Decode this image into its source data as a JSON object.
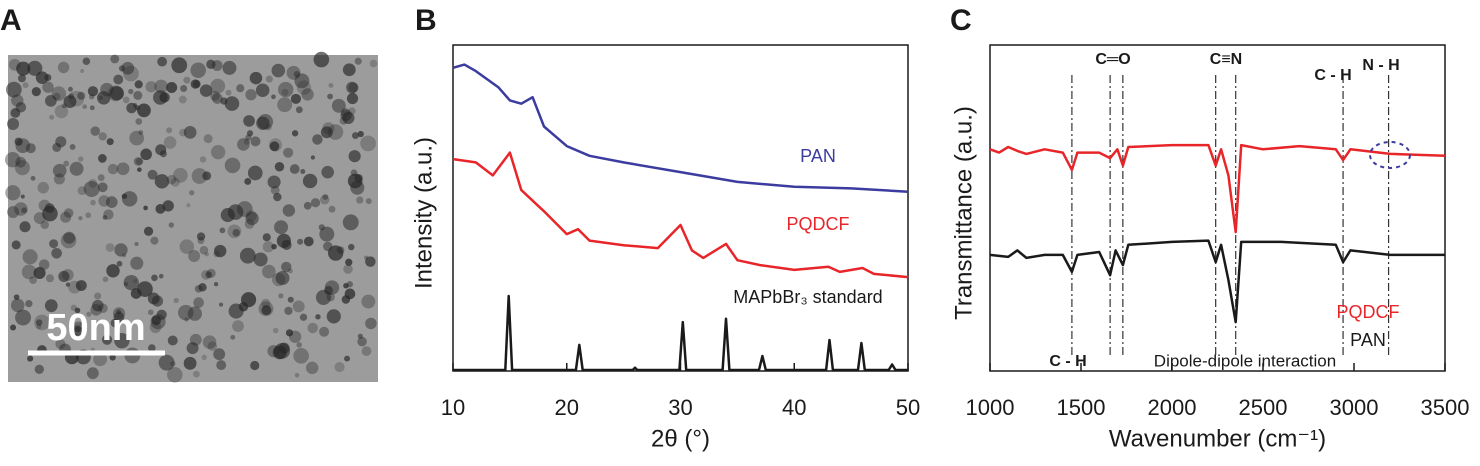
{
  "panel_a": {
    "label": "A",
    "scale_bar": "50nm"
  },
  "chart_data": [
    {
      "type": "line",
      "panel": "B",
      "xlabel": "2θ (°)",
      "ylabel": "Intensity (a.u.)",
      "xlim": [
        10,
        50
      ],
      "xticks": [
        10,
        20,
        30,
        40,
        50
      ],
      "ylim": [
        0,
        100
      ],
      "series": [
        {
          "name": "PAN",
          "color": "#3c3ca0",
          "x": [
            10,
            11,
            12,
            14,
            15,
            16,
            17,
            18,
            20,
            22,
            25,
            30,
            35,
            40,
            45,
            50
          ],
          "values": [
            93,
            94,
            92,
            87,
            83,
            82,
            84,
            75,
            69,
            66,
            64,
            61,
            58,
            56.5,
            56,
            55
          ]
        },
        {
          "name": "PQDCF",
          "color": "#e8262a",
          "x": [
            10,
            12,
            13.5,
            15,
            16,
            18,
            20,
            21,
            22,
            25,
            28,
            30,
            31,
            32,
            34,
            35,
            37,
            40,
            43,
            44,
            46,
            47,
            50
          ],
          "values": [
            65,
            64,
            60,
            67,
            55.5,
            49,
            42,
            43.5,
            40,
            38.6,
            37.7,
            44.8,
            37,
            34.7,
            39,
            34,
            32.5,
            31,
            32,
            30.4,
            31.6,
            29.8,
            28.8
          ]
        },
        {
          "name": "MAPbBr₃ standard",
          "color": "#1a1a1a",
          "x": [
            10,
            14.6,
            14.9,
            15.2,
            20.8,
            21.1,
            21.4,
            25.8,
            26,
            26.2,
            29.9,
            30.2,
            30.5,
            33.7,
            34,
            34.3,
            36.9,
            37.2,
            37.5,
            42.8,
            43.1,
            43.4,
            45.6,
            45.9,
            46.2,
            48.3,
            48.6,
            48.9,
            50
          ],
          "values": [
            0.3,
            0.3,
            23,
            0.3,
            0.3,
            8,
            0.3,
            0.3,
            1,
            0.3,
            0.3,
            15,
            0.3,
            0.3,
            16,
            0.3,
            0.3,
            4.6,
            0.3,
            0.3,
            9.5,
            0.3,
            0.3,
            8.6,
            0.3,
            0.3,
            2,
            0.3,
            0.3
          ]
        }
      ]
    },
    {
      "type": "line",
      "panel": "C",
      "xlabel": "Wavenumber (cm⁻¹)",
      "ylabel": "Transmittance (a.u.)",
      "xlim": [
        1000,
        3500
      ],
      "xticks": [
        1000,
        1500,
        2000,
        2500,
        3000,
        3500
      ],
      "ylim": [
        0,
        100
      ],
      "reference_lines": [
        1450,
        1660,
        1730,
        2240,
        2350,
        2940,
        3190
      ],
      "annotations": [
        "C═O",
        "C≡N",
        "C - H",
        "N - H",
        "C - H",
        "Dipole-dipole interaction"
      ],
      "series": [
        {
          "name": "PQDCF",
          "color": "#e8262a",
          "x": [
            1000,
            1050,
            1100,
            1150,
            1200,
            1300,
            1400,
            1450,
            1480,
            1600,
            1660,
            1700,
            1730,
            1760,
            2000,
            2200,
            2240,
            2270,
            2310,
            2350,
            2380,
            2500,
            2700,
            2900,
            2940,
            2980,
            3200,
            3500
          ],
          "values": [
            68,
            67,
            68.7,
            67.5,
            66.6,
            68,
            67,
            61.7,
            67,
            67,
            65.3,
            68,
            63,
            68.7,
            69.3,
            69.3,
            63,
            68,
            60,
            42.6,
            69.3,
            68,
            69,
            68,
            64.7,
            68,
            66.6,
            66
          ]
        },
        {
          "name": "PAN",
          "color": "#1a1a1a",
          "x": [
            1000,
            1100,
            1150,
            1200,
            1300,
            1400,
            1450,
            1480,
            1600,
            1660,
            1690,
            1730,
            1760,
            2000,
            2200,
            2240,
            2270,
            2310,
            2350,
            2380,
            2600,
            2900,
            2940,
            2980,
            3200,
            3500
          ],
          "values": [
            35.6,
            35,
            37,
            34.7,
            35.6,
            35.6,
            30.4,
            35.6,
            36.5,
            29.4,
            37,
            32.5,
            38.7,
            39.6,
            40,
            33.4,
            38.7,
            27.9,
            15,
            39.6,
            39.6,
            38.7,
            33.4,
            37,
            35.6,
            35.6
          ]
        }
      ]
    }
  ]
}
